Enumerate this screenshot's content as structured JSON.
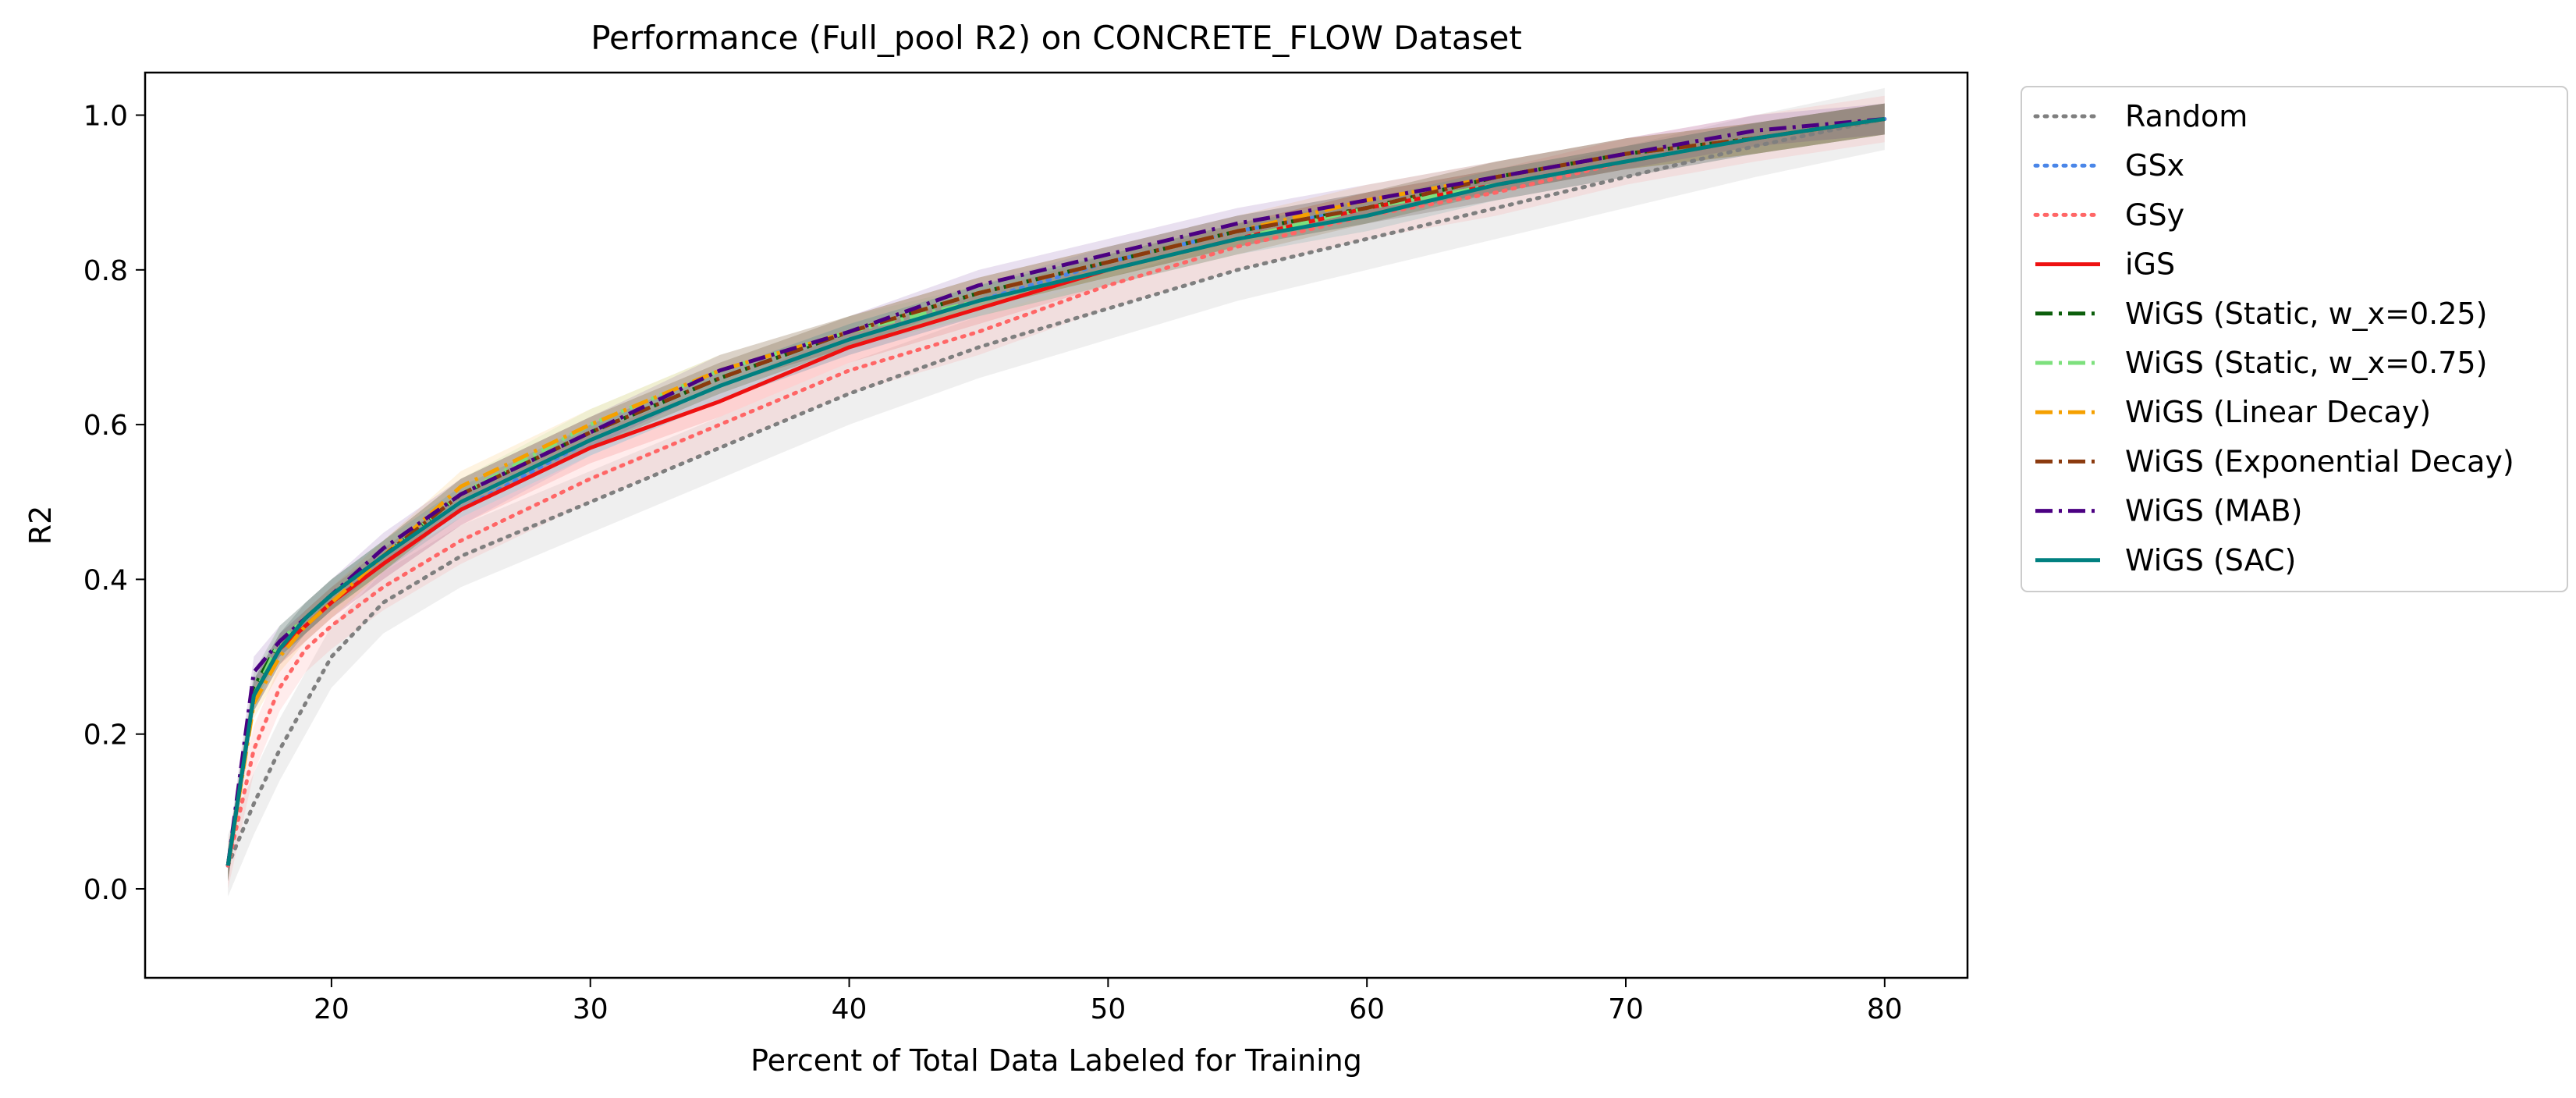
{
  "chart_data": {
    "type": "line",
    "title": "Performance (Full_pool R2) on CONCRETE_FLOW Dataset",
    "xlabel": "Percent of Total Data Labeled for Training",
    "ylabel": "R2",
    "xlim": [
      12.8,
      83.2
    ],
    "ylim": [
      -0.115,
      1.055
    ],
    "xticks": [
      20,
      30,
      40,
      50,
      60,
      70,
      80
    ],
    "yticks": [
      0.0,
      0.2,
      0.4,
      0.6,
      0.8,
      1.0
    ],
    "xtick_labels": [
      "20",
      "30",
      "40",
      "50",
      "60",
      "70",
      "80"
    ],
    "ytick_labels": [
      "0.0",
      "0.2",
      "0.4",
      "0.6",
      "0.8",
      "1.0"
    ],
    "grid": false,
    "legend_position": "outside right, top",
    "x": [
      16,
      17,
      18,
      19,
      20,
      22,
      25,
      30,
      35,
      40,
      45,
      50,
      55,
      60,
      65,
      70,
      75,
      80
    ],
    "series": [
      {
        "name": "Random",
        "color": "#7f7f7f",
        "dash": "dotted",
        "values": [
          0.03,
          0.11,
          0.18,
          0.24,
          0.3,
          0.37,
          0.43,
          0.5,
          0.57,
          0.64,
          0.7,
          0.75,
          0.8,
          0.84,
          0.88,
          0.92,
          0.96,
          0.995
        ],
        "band": 0.04
      },
      {
        "name": "GSx",
        "color": "#4a86e8",
        "dash": "dotted",
        "values": [
          0.03,
          0.25,
          0.31,
          0.34,
          0.37,
          0.42,
          0.49,
          0.58,
          0.65,
          0.71,
          0.76,
          0.81,
          0.85,
          0.88,
          0.91,
          0.94,
          0.97,
          0.995
        ],
        "band": 0.02
      },
      {
        "name": "GSy",
        "color": "#ff6666",
        "dash": "dotted",
        "values": [
          0.03,
          0.18,
          0.26,
          0.31,
          0.34,
          0.39,
          0.45,
          0.53,
          0.6,
          0.67,
          0.72,
          0.78,
          0.83,
          0.87,
          0.9,
          0.94,
          0.97,
          0.995
        ],
        "band": 0.03
      },
      {
        "name": "iGS",
        "color": "#ee1111",
        "dash": "solid",
        "values": [
          0.03,
          0.25,
          0.31,
          0.34,
          0.37,
          0.42,
          0.49,
          0.57,
          0.63,
          0.7,
          0.75,
          0.8,
          0.84,
          0.88,
          0.91,
          0.94,
          0.97,
          0.995
        ],
        "band": 0.02
      },
      {
        "name": "WiGS (Static, w_x=0.25)",
        "color": "#0b5e0b",
        "dash": "dashdot",
        "values": [
          0.03,
          0.26,
          0.32,
          0.35,
          0.38,
          0.43,
          0.51,
          0.59,
          0.66,
          0.72,
          0.77,
          0.81,
          0.85,
          0.88,
          0.92,
          0.95,
          0.97,
          0.995
        ],
        "band": 0.02
      },
      {
        "name": "WiGS (Static, w_x=0.75)",
        "color": "#7de07d",
        "dash": "dashdot",
        "values": [
          0.03,
          0.25,
          0.32,
          0.35,
          0.38,
          0.43,
          0.51,
          0.6,
          0.67,
          0.72,
          0.76,
          0.8,
          0.84,
          0.88,
          0.91,
          0.94,
          0.97,
          0.995
        ],
        "band": 0.02
      },
      {
        "name": "WiGS (Linear Decay)",
        "color": "#f5a000",
        "dash": "dashdot",
        "values": [
          0.03,
          0.24,
          0.3,
          0.34,
          0.37,
          0.43,
          0.52,
          0.6,
          0.67,
          0.72,
          0.77,
          0.81,
          0.85,
          0.89,
          0.92,
          0.95,
          0.97,
          0.995
        ],
        "band": 0.02
      },
      {
        "name": "WiGS (Exponential Decay)",
        "color": "#8b3a0e",
        "dash": "dashdot",
        "values": [
          0.03,
          0.25,
          0.31,
          0.35,
          0.38,
          0.43,
          0.51,
          0.59,
          0.66,
          0.72,
          0.77,
          0.81,
          0.85,
          0.88,
          0.92,
          0.95,
          0.97,
          0.995
        ],
        "band": 0.02
      },
      {
        "name": "WiGS (MAB)",
        "color": "#4b0082",
        "dash": "dashdot",
        "values": [
          0.03,
          0.28,
          0.32,
          0.35,
          0.38,
          0.44,
          0.51,
          0.59,
          0.67,
          0.72,
          0.78,
          0.82,
          0.86,
          0.89,
          0.92,
          0.95,
          0.98,
          0.995
        ],
        "band": 0.02
      },
      {
        "name": "WiGS (SAC)",
        "color": "#008080",
        "dash": "solid",
        "values": [
          0.03,
          0.25,
          0.31,
          0.35,
          0.38,
          0.43,
          0.5,
          0.58,
          0.65,
          0.71,
          0.76,
          0.8,
          0.84,
          0.87,
          0.91,
          0.94,
          0.97,
          0.995
        ],
        "band": 0.02
      }
    ]
  }
}
